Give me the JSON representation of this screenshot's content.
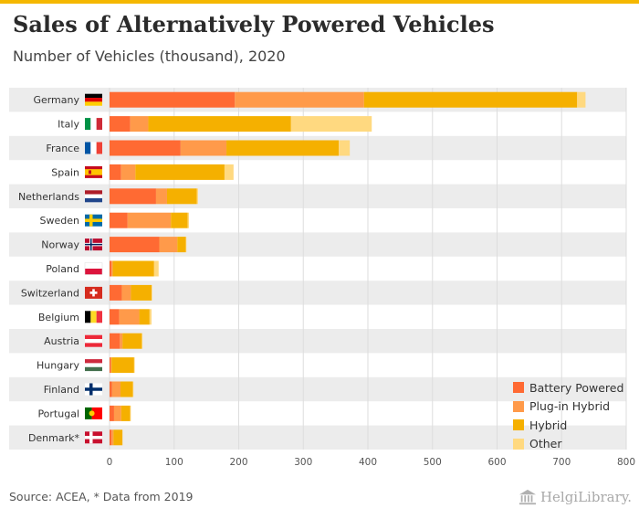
{
  "header": {
    "title": "Sales of Alternatively Powered Vehicles",
    "subtitle": "Number of Vehicles (thousand), 2020"
  },
  "footer": {
    "source": "Source: ACEA, * Data from 2019",
    "logo_text": "HelgiLibrary."
  },
  "colors": {
    "accent_bar": "#f5b800",
    "row_band": "#ececec",
    "grid": "#dddddd"
  },
  "chart_data": {
    "type": "bar",
    "orientation": "horizontal",
    "stacked": true,
    "title": "Sales of Alternatively Powered Vehicles",
    "subtitle": "Number of Vehicles (thousand), 2020",
    "categories": [
      "Germany",
      "Italy",
      "France",
      "Spain",
      "Netherlands",
      "Sweden",
      "Norway",
      "Poland",
      "Switzerland",
      "Belgium",
      "Austria",
      "Hungary",
      "Finland",
      "Portugal",
      "Denmark*"
    ],
    "flags": [
      "germany-flag",
      "italy-flag",
      "france-flag",
      "spain-flag",
      "netherlands-flag",
      "sweden-flag",
      "norway-flag",
      "poland-flag",
      "switzerland-flag",
      "belgium-flag",
      "austria-flag",
      "hungary-flag",
      "finland-flag",
      "portugal-flag",
      "denmark-flag"
    ],
    "series": [
      {
        "name": "Battery Powered",
        "color": "#ff6a33",
        "values": [
          194,
          32,
          110,
          18,
          72,
          28,
          77,
          3,
          19,
          15,
          16,
          2,
          4,
          7,
          3
        ]
      },
      {
        "name": "Plug-in Hybrid",
        "color": "#ff9a4a",
        "values": [
          200,
          28,
          71,
          22,
          17,
          67,
          28,
          2,
          14,
          31,
          4,
          1,
          13,
          11,
          3
        ]
      },
      {
        "name": "Hybrid",
        "color": "#f5b000",
        "values": [
          330,
          221,
          174,
          138,
          46,
          26,
          13,
          64,
          32,
          16,
          30,
          35,
          19,
          14,
          14
        ]
      },
      {
        "name": "Other",
        "color": "#ffd980",
        "values": [
          13,
          125,
          17,
          14,
          2,
          2,
          1,
          7,
          1,
          3,
          1,
          1,
          1,
          1,
          0
        ]
      }
    ],
    "xlim": [
      0,
      800
    ],
    "xticks": [
      0,
      100,
      200,
      300,
      400,
      500,
      600,
      700,
      800
    ],
    "xtick_labels": [
      "0",
      "100",
      "200",
      "300",
      "400",
      "500",
      "600",
      "700",
      "800"
    ],
    "grid": true,
    "legend_position": "bottom-right"
  }
}
